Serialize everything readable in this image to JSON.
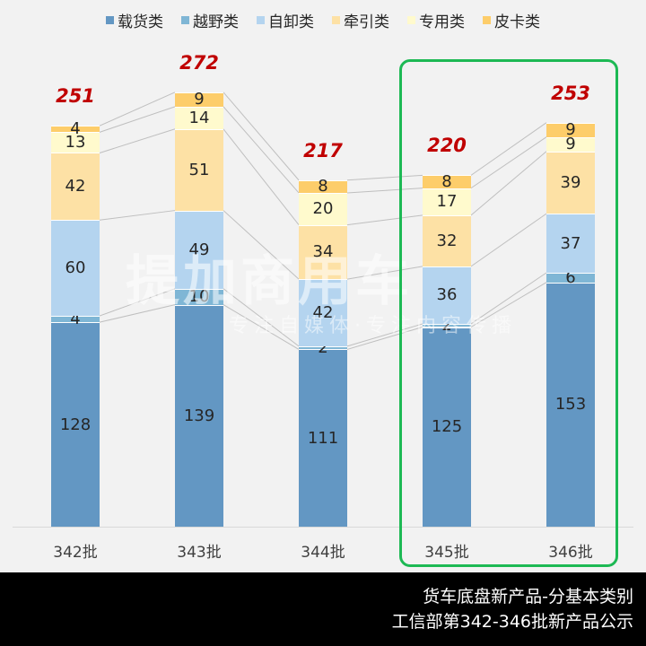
{
  "legend": [
    {
      "label": "载货类",
      "color": "#6397c3"
    },
    {
      "label": "越野类",
      "color": "#7fb6d5"
    },
    {
      "label": "自卸类",
      "color": "#b4d4ef"
    },
    {
      "label": "牵引类",
      "color": "#fde1a5"
    },
    {
      "label": "专用类",
      "color": "#fffacd"
    },
    {
      "label": "皮卡类",
      "color": "#fdcd6a"
    }
  ],
  "footer": {
    "line1": "货车底盘新产品-分基本类别",
    "line2": "工信部第342-346批新产品公示"
  },
  "watermark": {
    "main": "提加商用车",
    "sub": "专注自媒体·专注内容传播"
  },
  "chart_data": {
    "type": "bar",
    "stacked": true,
    "title": "货车底盘新产品-分基本类别",
    "subtitle": "工信部第342-346批新产品公示",
    "categories": [
      "342批",
      "343批",
      "344批",
      "345批",
      "346批"
    ],
    "series": [
      {
        "name": "载货类",
        "color": "#6397c3",
        "values": [
          128,
          139,
          111,
          125,
          153
        ]
      },
      {
        "name": "越野类",
        "color": "#7fb6d5",
        "values": [
          4,
          10,
          2,
          2,
          6
        ]
      },
      {
        "name": "自卸类",
        "color": "#b4d4ef",
        "values": [
          60,
          49,
          42,
          36,
          37
        ]
      },
      {
        "name": "牵引类",
        "color": "#fde1a5",
        "values": [
          42,
          51,
          34,
          32,
          39
        ]
      },
      {
        "name": "专用类",
        "color": "#fffacd",
        "values": [
          13,
          14,
          20,
          17,
          9
        ]
      },
      {
        "name": "皮卡类",
        "color": "#fdcd6a",
        "values": [
          4,
          9,
          8,
          8,
          9
        ]
      }
    ],
    "totals": [
      251,
      272,
      217,
      220,
      253
    ],
    "highlighted_categories": [
      "345批",
      "346批"
    ],
    "legend_position": "top",
    "grid": false,
    "xlabel": "",
    "ylabel": ""
  }
}
